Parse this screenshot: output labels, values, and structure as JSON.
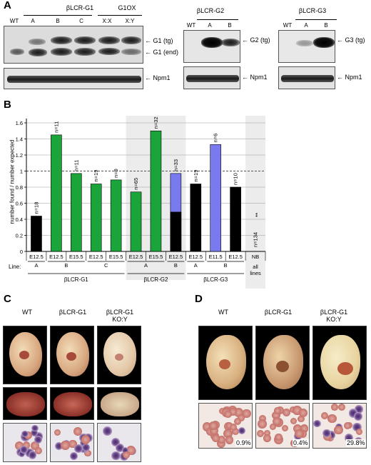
{
  "panelA": {
    "label": "A",
    "g1_header": "βLCR-G1",
    "g1ox_header": "G1OX",
    "g2_header": "βLCR-G2",
    "g3_header": "βLCR-G3",
    "blot1_lanes": [
      "WT",
      "A",
      "B",
      "C",
      "X:X",
      "X:Y"
    ],
    "blot2_lanes": [
      "WT",
      "A",
      "B"
    ],
    "blot3_lanes": [
      "WT",
      "A",
      "B"
    ],
    "arrow_g1_tg": "G1 (tg)",
    "arrow_g1_end": "G1 (end)",
    "arrow_g2_tg": "G2 (tg)",
    "arrow_g3_tg": "G3 (tg)",
    "arrow_npm1": "Npm1"
  },
  "panelB": {
    "label": "B",
    "line_label": "Line:"
  },
  "chart_data": {
    "type": "bar",
    "ylabel": "number found / number expected",
    "ylim": [
      0,
      1.6
    ],
    "yticks": [
      "0",
      "0.2",
      "0.4",
      "0.6",
      "0.8",
      "1",
      "1.2",
      "1.4",
      "1.6"
    ],
    "reference_line": 1,
    "bars": [
      {
        "stage": "E12.5",
        "value": 0.44,
        "n": "n=18",
        "color": "#000000"
      },
      {
        "stage": "E12.5",
        "value": 1.45,
        "n": "n=11",
        "color": "#1aa43a"
      },
      {
        "stage": "E15.5",
        "value": 0.97,
        "n": "n=11",
        "color": "#1aa43a"
      },
      {
        "stage": "E12.5",
        "value": 0.84,
        "n": "n=19",
        "color": "#1aa43a"
      },
      {
        "stage": "E15.5",
        "value": 0.89,
        "n": "n=9",
        "color": "#1aa43a"
      },
      {
        "stage": "E12.5",
        "value": 0.74,
        "n": "n=65",
        "color": "#1aa43a"
      },
      {
        "stage": "E15.5",
        "value": 1.5,
        "n": "n=32",
        "color": "#1aa43a"
      },
      {
        "stage": "E12.5",
        "value": 0.97,
        "value_lower": 0.49,
        "n": "n=33",
        "color": "#7a7af0",
        "lower_color": "#000000"
      },
      {
        "stage": "E12.5",
        "value": 0.84,
        "n": "n=19",
        "color": "#000000"
      },
      {
        "stage": "E11.5",
        "value": 1.33,
        "n": "n=6",
        "color": "#7a7af0"
      },
      {
        "stage": "E12.5",
        "value": 0.8,
        "n": "n=10",
        "color": "#000000"
      },
      {
        "stage": "NB",
        "value": 0,
        "n": "n=134",
        "color": "#000000",
        "annotation": "**"
      }
    ],
    "lines": [
      "A",
      "B",
      "C",
      "A",
      "B",
      "A",
      "B",
      "all lines"
    ],
    "groups": [
      "βLCR-G1",
      "βLCR-G2",
      "βLCR-G3"
    ]
  },
  "panelC": {
    "label": "C",
    "headers": [
      "WT",
      "βLCR-G1",
      "βLCR-G1\nKO:Y"
    ]
  },
  "panelD": {
    "label": "D",
    "headers": [
      "WT",
      "βLCR-G1",
      "βLCR-G1\nKO:Y"
    ],
    "percents": [
      "0.9%",
      "0.4%",
      "29.8%"
    ]
  }
}
